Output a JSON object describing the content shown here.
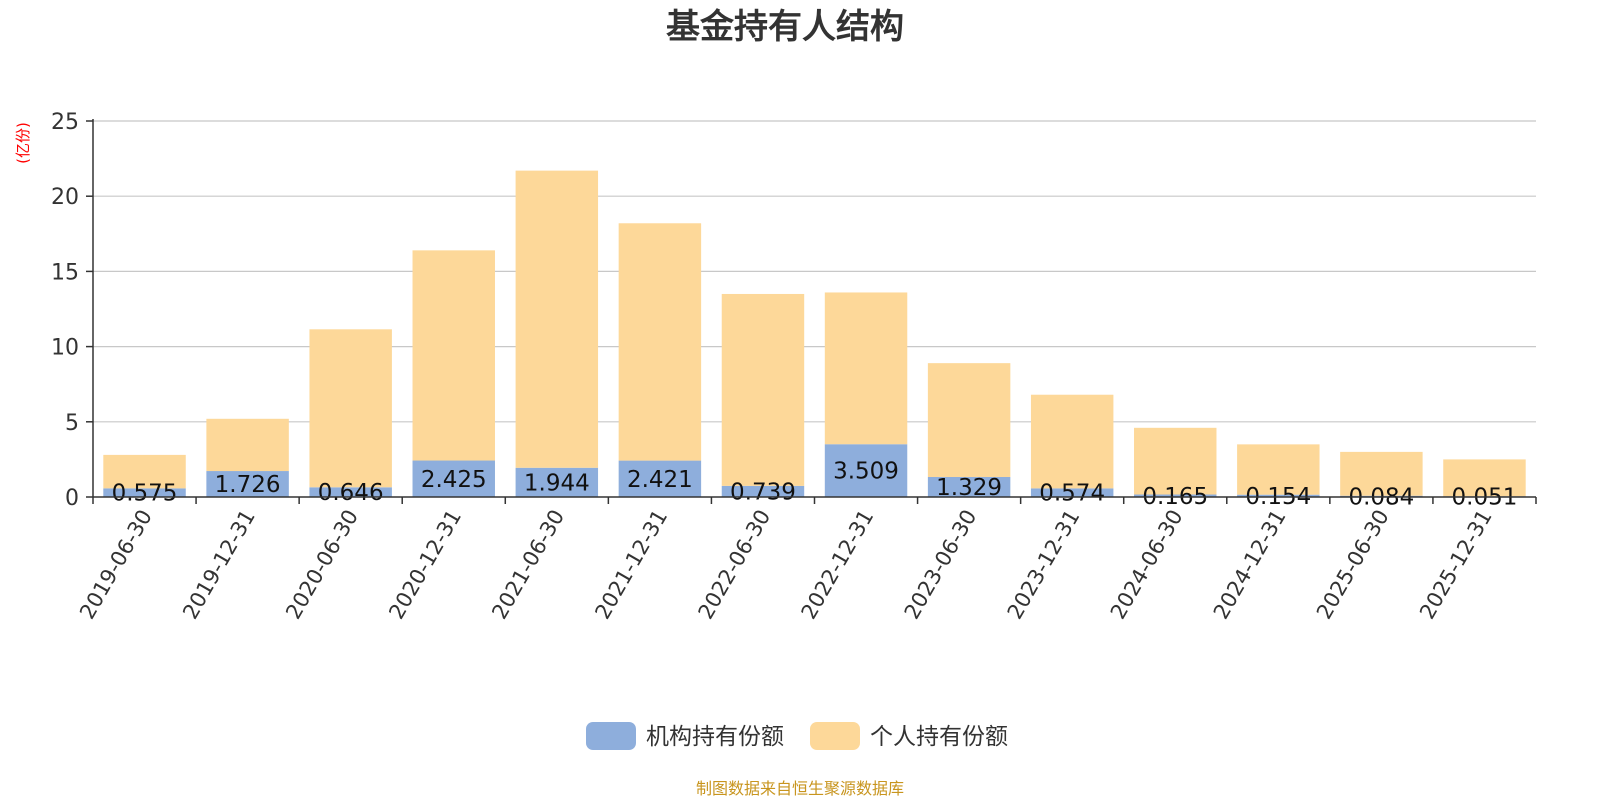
{
  "chart_data": {
    "type": "bar",
    "stacked": true,
    "title": "基金持有人结构",
    "unit_label": "(亿份)",
    "ylim": [
      0,
      25
    ],
    "yticks": [
      0,
      5,
      10,
      15,
      20,
      25
    ],
    "grid": true,
    "legend_position": "bottom-center",
    "categories": [
      "2019-06-30",
      "2019-12-31",
      "2020-06-30",
      "2020-12-31",
      "2021-06-30",
      "2021-12-31",
      "2022-06-30",
      "2022-12-31",
      "2023-06-30",
      "2023-12-31",
      "2024-06-30",
      "2024-12-31",
      "2025-06-30",
      "2025-12-31"
    ],
    "series": [
      {
        "name": "机构持有份额",
        "color": "#8eaedc",
        "values": [
          0.575,
          1.726,
          0.646,
          2.425,
          1.944,
          2.421,
          0.739,
          3.509,
          1.329,
          0.574,
          0.165,
          0.154,
          0.084,
          0.051
        ]
      },
      {
        "name": "个人持有份额",
        "color": "#fdd899",
        "values": [
          2.225,
          3.474,
          10.504,
          13.975,
          19.756,
          15.779,
          12.761,
          10.091,
          7.571,
          6.226,
          4.435,
          3.346,
          2.916,
          2.449
        ]
      }
    ],
    "data_labels": [
      "0.575",
      "1.726",
      "0.646",
      "2.425",
      "1.944",
      "2.421",
      "0.739",
      "3.509",
      "1.329",
      "0.574",
      "0.165",
      "0.154",
      "0.084",
      "0.051"
    ]
  },
  "footer": {
    "source": "制图数据来自恒生聚源数据库"
  }
}
